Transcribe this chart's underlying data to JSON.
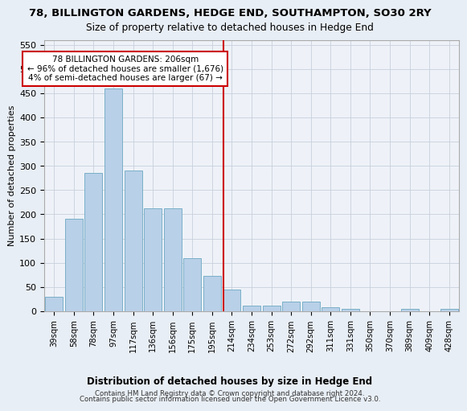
{
  "title": "78, BILLINGTON GARDENS, HEDGE END, SOUTHAMPTON, SO30 2RY",
  "subtitle": "Size of property relative to detached houses in Hedge End",
  "xlabel": "Distribution of detached houses by size in Hedge End",
  "ylabel": "Number of detached properties",
  "bin_labels": [
    "39sqm",
    "58sqm",
    "78sqm",
    "97sqm",
    "117sqm",
    "136sqm",
    "156sqm",
    "175sqm",
    "195sqm",
    "214sqm",
    "234sqm",
    "253sqm",
    "272sqm",
    "292sqm",
    "311sqm",
    "331sqm",
    "350sqm",
    "370sqm",
    "389sqm",
    "409sqm",
    "428sqm"
  ],
  "bar_values": [
    30,
    190,
    285,
    460,
    290,
    212,
    212,
    110,
    73,
    45,
    12,
    12,
    20,
    20,
    8,
    5,
    0,
    0,
    5,
    0,
    5
  ],
  "bar_color": "#b8d0e8",
  "bar_edge_color": "#7aafc8",
  "vline_color": "#cc0000",
  "annotation_text": "78 BILLINGTON GARDENS: 206sqm\n← 96% of detached houses are smaller (1,676)\n4% of semi-detached houses are larger (67) →",
  "annotation_box_color": "#ffffff",
  "annotation_box_edge_color": "#cc0000",
  "ylim": [
    0,
    560
  ],
  "yticks": [
    0,
    50,
    100,
    150,
    200,
    250,
    300,
    350,
    400,
    450,
    500,
    550
  ],
  "footer_line1": "Contains HM Land Registry data © Crown copyright and database right 2024.",
  "footer_line2": "Contains public sector information licensed under the Open Government Licence v3.0.",
  "bg_color": "#e8eef5",
  "plot_bg_color": "#eef2f8",
  "grid_color": "#c8d0dc"
}
